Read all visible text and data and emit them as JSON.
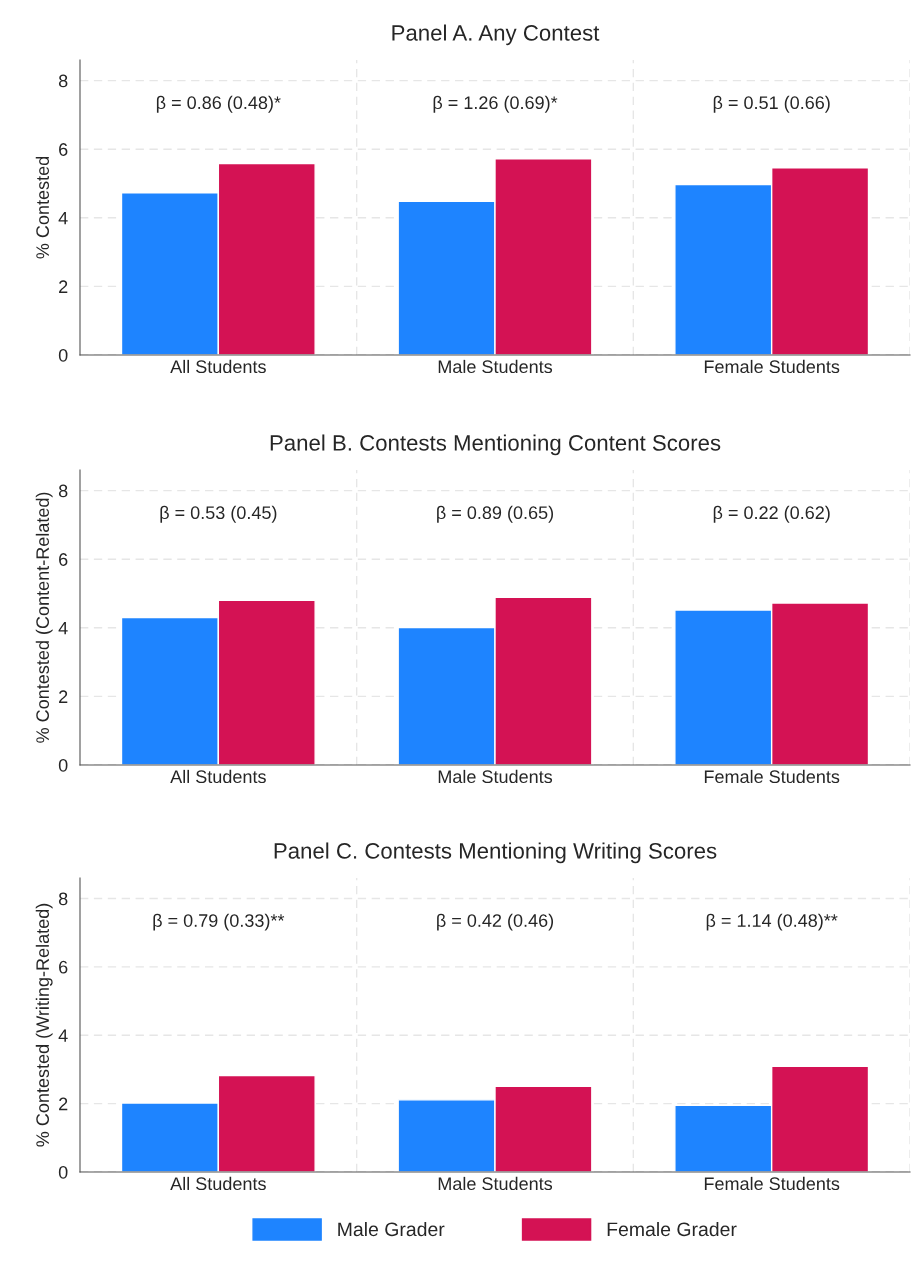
{
  "chart_data": [
    {
      "type": "bar",
      "title": "Panel A. Any Contest",
      "ylabel": "% Contested",
      "categories": [
        "All Students",
        "Male Students",
        "Female Students"
      ],
      "series": [
        {
          "color": "#1e84ff",
          "values": [
            4.73,
            4.48,
            4.97
          ]
        },
        {
          "color": "#d41254",
          "values": [
            5.58,
            5.72,
            5.46
          ]
        }
      ],
      "ylim": [
        0,
        8.6
      ],
      "yticks": [
        0,
        2,
        4,
        6,
        8
      ],
      "grid": true,
      "legend": false,
      "annotations": [
        "β = 0.86 (0.48)*",
        "β = 1.26 (0.69)*",
        "β = 0.51 (0.66)"
      ]
    },
    {
      "type": "bar",
      "title": "Panel B. Contests Mentioning Content Scores",
      "ylabel": "% Contested (Content-Related)",
      "categories": [
        "All Students",
        "Male Students",
        "Female Students"
      ],
      "series": [
        {
          "color": "#1e84ff",
          "values": [
            4.3,
            4.01,
            4.52
          ]
        },
        {
          "color": "#d41254",
          "values": [
            4.8,
            4.89,
            4.72
          ]
        }
      ],
      "ylim": [
        0,
        8.6
      ],
      "yticks": [
        0,
        2,
        4,
        6,
        8
      ],
      "grid": true,
      "legend": false,
      "annotations": [
        "β = 0.53 (0.45)",
        "β = 0.89 (0.65)",
        "β = 0.22 (0.62)"
      ]
    },
    {
      "type": "bar",
      "title": "Panel C. Contests Mentioning Writing Scores",
      "ylabel": "% Contested (Writing-Related)",
      "categories": [
        "All Students",
        "Male Students",
        "Female Students"
      ],
      "series": [
        {
          "name": "Male Grader",
          "color": "#1e84ff",
          "values": [
            2.02,
            2.11,
            1.95
          ]
        },
        {
          "name": "Female Grader",
          "color": "#d41254",
          "values": [
            2.82,
            2.51,
            3.09
          ]
        }
      ],
      "ylim": [
        0,
        8.6
      ],
      "yticks": [
        0,
        2,
        4,
        6,
        8
      ],
      "grid": true,
      "legend": "bottom",
      "annotations": [
        "β = 0.79 (0.33)**",
        "β = 0.42 (0.46)",
        "β = 1.14 (0.48)**"
      ]
    }
  ]
}
